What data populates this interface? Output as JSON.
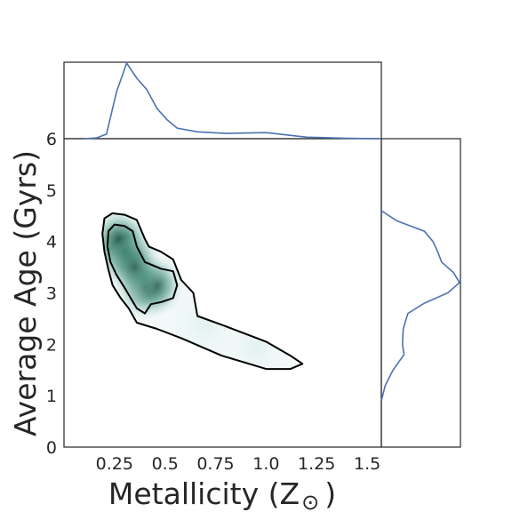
{
  "chart_data": {
    "type": "kde-joint",
    "xlabel": "Metallicity (Z",
    "xlabel_symbol": "⊙",
    "xlabel_close": ")",
    "ylabel": "Average Age (Gyrs)",
    "xlim": [
      0.0,
      1.57
    ],
    "ylim": [
      0,
      6
    ],
    "xticks": [
      0.25,
      0.5,
      0.75,
      1.0,
      1.25,
      1.5
    ],
    "xtick_labels": [
      "0.25",
      "0.5",
      "0.75",
      "1.0",
      "1.25",
      "1.5"
    ],
    "yticks": [
      0,
      1,
      2,
      3,
      4,
      5,
      6
    ],
    "ytick_labels": [
      "0",
      "1",
      "2",
      "3",
      "4",
      "5",
      "6"
    ],
    "grid": false,
    "colors": {
      "marginal": "#4c72b0",
      "contour": "#000000",
      "density_dark": "#1a4d3e",
      "density_light": "#e8f4f2"
    },
    "outer_contour": [
      [
        0.2,
        4.45
      ],
      [
        0.24,
        4.55
      ],
      [
        0.3,
        4.52
      ],
      [
        0.36,
        4.42
      ],
      [
        0.4,
        4.05
      ],
      [
        0.42,
        3.9
      ],
      [
        0.48,
        3.8
      ],
      [
        0.54,
        3.65
      ],
      [
        0.58,
        3.25
      ],
      [
        0.64,
        3.0
      ],
      [
        0.66,
        2.55
      ],
      [
        0.8,
        2.35
      ],
      [
        1.0,
        2.05
      ],
      [
        1.12,
        1.78
      ],
      [
        1.18,
        1.62
      ],
      [
        1.12,
        1.52
      ],
      [
        1.0,
        1.52
      ],
      [
        0.78,
        1.78
      ],
      [
        0.58,
        2.12
      ],
      [
        0.46,
        2.3
      ],
      [
        0.36,
        2.42
      ],
      [
        0.32,
        2.7
      ],
      [
        0.28,
        2.9
      ],
      [
        0.24,
        3.15
      ],
      [
        0.22,
        3.45
      ],
      [
        0.2,
        3.8
      ],
      [
        0.19,
        4.15
      ],
      [
        0.2,
        4.45
      ]
    ],
    "inner_contour": [
      [
        0.22,
        4.2
      ],
      [
        0.25,
        4.33
      ],
      [
        0.3,
        4.3
      ],
      [
        0.34,
        4.2
      ],
      [
        0.36,
        3.9
      ],
      [
        0.4,
        3.6
      ],
      [
        0.48,
        3.47
      ],
      [
        0.54,
        3.42
      ],
      [
        0.56,
        3.15
      ],
      [
        0.54,
        2.9
      ],
      [
        0.48,
        2.82
      ],
      [
        0.43,
        2.78
      ],
      [
        0.4,
        2.6
      ],
      [
        0.36,
        2.7
      ],
      [
        0.33,
        2.9
      ],
      [
        0.3,
        3.1
      ],
      [
        0.26,
        3.35
      ],
      [
        0.23,
        3.6
      ],
      [
        0.215,
        3.9
      ],
      [
        0.22,
        4.2
      ]
    ],
    "density_peaks": [
      {
        "x": 0.3,
        "y": 3.8,
        "weight": 1.0
      },
      {
        "x": 0.27,
        "y": 4.05,
        "weight": 0.75
      },
      {
        "x": 0.4,
        "y": 3.1,
        "weight": 0.85
      },
      {
        "x": 0.46,
        "y": 3.15,
        "weight": 0.6
      },
      {
        "x": 0.35,
        "y": 3.5,
        "weight": 0.7
      },
      {
        "x": 0.7,
        "y": 2.4,
        "weight": 0.2
      },
      {
        "x": 0.95,
        "y": 1.95,
        "weight": 0.12
      }
    ],
    "marginal_x": {
      "x": [
        0.1,
        0.16,
        0.21,
        0.26,
        0.31,
        0.36,
        0.41,
        0.46,
        0.51,
        0.56,
        0.66,
        0.8,
        1.0,
        1.2,
        1.4,
        1.57
      ],
      "density": [
        0.0,
        0.01,
        0.06,
        0.62,
        1.0,
        0.8,
        0.65,
        0.4,
        0.25,
        0.14,
        0.09,
        0.07,
        0.08,
        0.02,
        0.005,
        0.0
      ]
    },
    "marginal_y": {
      "y": [
        0.9,
        1.2,
        1.5,
        1.8,
        2.0,
        2.3,
        2.6,
        2.8,
        3.0,
        3.2,
        3.4,
        3.6,
        3.8,
        4.0,
        4.2,
        4.4,
        4.6
      ],
      "density": [
        0.0,
        0.05,
        0.15,
        0.29,
        0.27,
        0.28,
        0.34,
        0.55,
        0.85,
        1.0,
        0.92,
        0.77,
        0.72,
        0.66,
        0.55,
        0.2,
        0.0
      ]
    }
  }
}
